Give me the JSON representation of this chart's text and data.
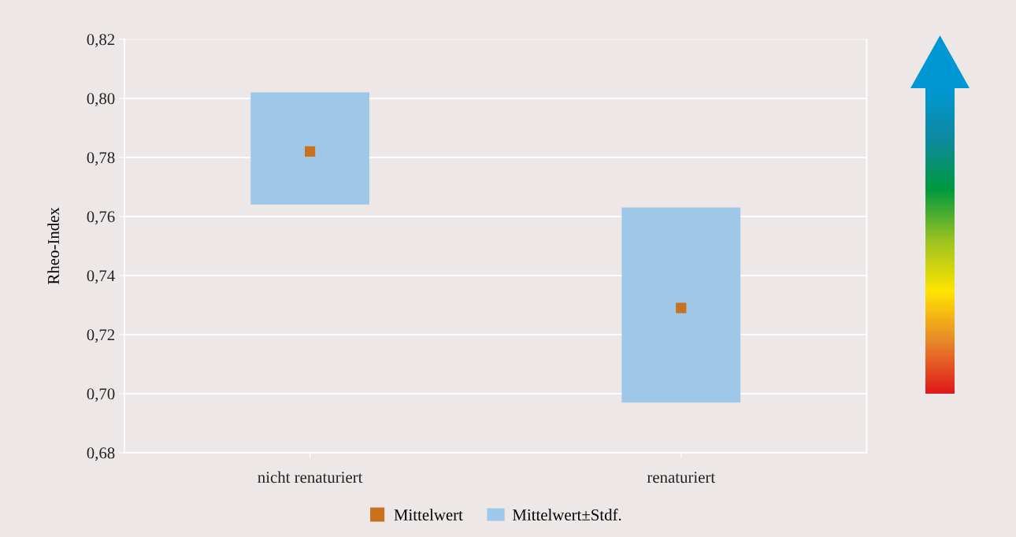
{
  "chart_data": {
    "type": "bar",
    "ylabel": "Rheo-Index",
    "categories": [
      "nicht renaturiert",
      "renaturiert"
    ],
    "series": [
      {
        "name": "Mittelwert",
        "type": "scatter",
        "color": "#c8711f",
        "values": [
          0.782,
          0.729
        ],
        "marker": "square"
      },
      {
        "name": "Mittelwert±Stdf.",
        "color": "#9fc8e8",
        "base": [
          0.764,
          0.697
        ],
        "values": [
          0.038,
          0.066
        ]
      }
    ],
    "ylim": [
      0.68,
      0.82
    ],
    "yticks": [
      {
        "value": 0.68,
        "label": "0,68"
      },
      {
        "value": 0.7,
        "label": "0,70"
      },
      {
        "value": 0.72,
        "label": "0,72"
      },
      {
        "value": 0.74,
        "label": "0,74"
      },
      {
        "value": 0.76,
        "label": "0,76"
      },
      {
        "value": 0.78,
        "label": "0,78"
      },
      {
        "value": 0.8,
        "label": "0,80"
      },
      {
        "value": 0.82,
        "label": "0,82"
      }
    ],
    "grid": "y",
    "legend": "bottom"
  }
}
